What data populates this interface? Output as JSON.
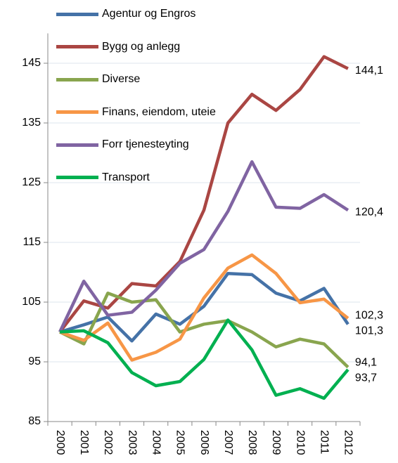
{
  "chart_data": {
    "type": "line",
    "categories": [
      "2000",
      "2001",
      "2002",
      "2003",
      "2004",
      "2005",
      "2006",
      "2007",
      "2008",
      "2009",
      "2010",
      "2011",
      "2012"
    ],
    "series": [
      {
        "name": "Agentur og Engros",
        "color": "#4572a7",
        "values": [
          100,
          101.2,
          102.5,
          98.5,
          103,
          101.3,
          104.3,
          109.8,
          109.6,
          106.5,
          105.2,
          107.3,
          101.3
        ],
        "value_labels": [
          null,
          null,
          null,
          null,
          null,
          null,
          null,
          null,
          null,
          null,
          null,
          null,
          "101,3"
        ]
      },
      {
        "name": "Bygg og anlegg",
        "color": "#aa4643",
        "values": [
          100,
          105.2,
          104,
          108.1,
          107.7,
          111.8,
          120.4,
          135,
          139.8,
          137.1,
          140.6,
          146.1,
          144.1
        ],
        "value_labels": [
          null,
          null,
          null,
          null,
          null,
          null,
          null,
          null,
          null,
          null,
          null,
          null,
          "144,1"
        ]
      },
      {
        "name": "Diverse",
        "color": "#89a54e",
        "values": [
          100,
          98,
          106.5,
          105,
          105.4,
          100,
          101.3,
          101.9,
          100,
          97.5,
          98.8,
          98,
          94.1
        ],
        "value_labels": [
          null,
          null,
          null,
          null,
          null,
          null,
          null,
          null,
          null,
          null,
          null,
          null,
          "94,1"
        ]
      },
      {
        "name": "Finans, eiendom, uteie",
        "color": "#f79646",
        "values": [
          100,
          98.6,
          101.5,
          95.3,
          96.6,
          98.8,
          105.7,
          110.7,
          112.9,
          109.8,
          104.9,
          105.5,
          102.3
        ],
        "value_labels": [
          null,
          null,
          null,
          null,
          null,
          null,
          null,
          null,
          null,
          null,
          null,
          null,
          "102,3"
        ]
      },
      {
        "name": "Forr tjenesteyting",
        "color": "#8064a2",
        "values": [
          100,
          108.5,
          102.8,
          103.3,
          107,
          111.5,
          113.8,
          120.2,
          128.5,
          120.9,
          120.7,
          123,
          120.4
        ],
        "value_labels": [
          null,
          null,
          null,
          null,
          null,
          null,
          null,
          null,
          null,
          null,
          null,
          null,
          "120,4"
        ]
      },
      {
        "name": "Transport",
        "color": "#00b050",
        "values": [
          100,
          100.2,
          98.2,
          93.2,
          91,
          91.7,
          95.4,
          102,
          97,
          89.4,
          90.5,
          88.9,
          93.7
        ],
        "value_labels": [
          null,
          null,
          null,
          null,
          null,
          null,
          null,
          null,
          null,
          null,
          null,
          null,
          "93,7"
        ]
      }
    ],
    "ylim": [
      85,
      150
    ],
    "yticks": [
      85,
      95,
      105,
      115,
      125,
      135,
      145
    ],
    "grid": true,
    "legend": "top-left"
  }
}
